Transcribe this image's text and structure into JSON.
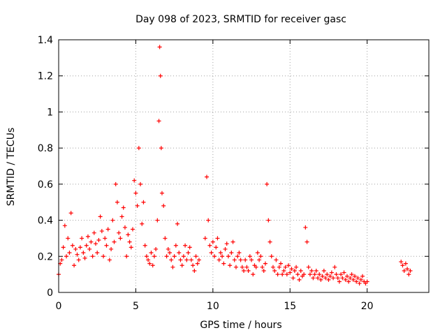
{
  "chart_data": {
    "type": "scatter",
    "title": "Day 098 of 2023, SRMTID for receiver gasc",
    "xlabel": "GPS time / hours",
    "ylabel": "SRMTID / TECUs",
    "xlim": [
      0,
      24
    ],
    "ylim": [
      0,
      1.4
    ],
    "xticks": [
      0,
      5,
      10,
      15,
      20
    ],
    "xtick_labels": [
      "0",
      "5",
      "10",
      "15",
      "20"
    ],
    "yticks": [
      0,
      0.2,
      0.4,
      0.6,
      0.8,
      1.0,
      1.2,
      1.4
    ],
    "ytick_labels": [
      "0",
      "0.2",
      "0.4",
      "0.6",
      "0.8",
      "1",
      "1.2",
      "1.4"
    ],
    "grid": true,
    "marker": "plus",
    "series": [
      {
        "name": "SRMTID",
        "color": "#ff0000",
        "x": [
          0.0,
          0.1,
          0.2,
          0.3,
          0.4,
          0.5,
          0.6,
          0.7,
          0.8,
          0.9,
          1.0,
          1.1,
          1.2,
          1.3,
          1.4,
          1.5,
          1.6,
          1.7,
          1.8,
          1.9,
          2.0,
          2.1,
          2.2,
          2.3,
          2.4,
          2.5,
          2.6,
          2.7,
          2.8,
          2.9,
          3.0,
          3.1,
          3.2,
          3.3,
          3.4,
          3.5,
          3.6,
          3.7,
          3.8,
          3.9,
          4.0,
          4.1,
          4.2,
          4.3,
          4.4,
          4.5,
          4.6,
          4.7,
          4.8,
          4.9,
          5.0,
          5.1,
          5.2,
          5.3,
          5.4,
          5.5,
          5.6,
          5.7,
          5.8,
          5.9,
          6.0,
          6.1,
          6.2,
          6.3,
          6.4,
          6.5,
          6.55,
          6.6,
          6.65,
          6.7,
          6.8,
          6.9,
          7.0,
          7.1,
          7.2,
          7.3,
          7.4,
          7.5,
          7.6,
          7.7,
          7.8,
          7.9,
          8.0,
          8.1,
          8.2,
          8.3,
          8.4,
          8.5,
          8.6,
          8.7,
          8.8,
          8.9,
          9.0,
          9.1,
          9.5,
          9.6,
          9.7,
          9.8,
          9.9,
          10.0,
          10.1,
          10.2,
          10.3,
          10.4,
          10.5,
          10.6,
          10.7,
          10.8,
          10.9,
          11.0,
          11.1,
          11.2,
          11.3,
          11.4,
          11.5,
          11.6,
          11.7,
          11.8,
          11.9,
          12.0,
          12.1,
          12.2,
          12.3,
          12.4,
          12.5,
          12.6,
          12.7,
          12.8,
          12.9,
          13.0,
          13.1,
          13.2,
          13.3,
          13.4,
          13.5,
          13.6,
          13.7,
          13.8,
          13.9,
          14.0,
          14.1,
          14.2,
          14.3,
          14.4,
          14.5,
          14.6,
          14.7,
          14.8,
          14.9,
          15.0,
          15.1,
          15.2,
          15.3,
          15.4,
          15.5,
          15.6,
          15.7,
          15.8,
          15.9,
          16.0,
          16.1,
          16.2,
          16.3,
          16.4,
          16.5,
          16.6,
          16.7,
          16.8,
          16.9,
          17.0,
          17.1,
          17.2,
          17.3,
          17.4,
          17.5,
          17.6,
          17.7,
          17.8,
          17.9,
          18.0,
          18.1,
          18.2,
          18.3,
          18.4,
          18.5,
          18.6,
          18.7,
          18.8,
          18.9,
          19.0,
          19.1,
          19.2,
          19.3,
          19.4,
          19.5,
          19.6,
          19.7,
          19.8,
          19.9,
          20.0,
          22.2,
          22.3,
          22.4,
          22.5,
          22.6,
          22.7,
          22.8
        ],
        "y": [
          0.1,
          0.16,
          0.18,
          0.25,
          0.37,
          0.2,
          0.3,
          0.22,
          0.44,
          0.26,
          0.15,
          0.24,
          0.21,
          0.18,
          0.25,
          0.3,
          0.22,
          0.19,
          0.26,
          0.31,
          0.24,
          0.28,
          0.2,
          0.33,
          0.27,
          0.22,
          0.29,
          0.42,
          0.34,
          0.2,
          0.3,
          0.26,
          0.35,
          0.18,
          0.24,
          0.4,
          0.28,
          0.6,
          0.5,
          0.33,
          0.3,
          0.42,
          0.47,
          0.36,
          0.2,
          0.32,
          0.28,
          0.25,
          0.35,
          0.62,
          0.55,
          0.48,
          0.8,
          0.6,
          0.38,
          0.5,
          0.26,
          0.2,
          0.18,
          0.16,
          0.22,
          0.15,
          0.2,
          0.24,
          0.4,
          0.95,
          1.36,
          1.2,
          0.8,
          0.55,
          0.48,
          0.3,
          0.2,
          0.24,
          0.22,
          0.18,
          0.14,
          0.2,
          0.26,
          0.38,
          0.22,
          0.18,
          0.15,
          0.2,
          0.26,
          0.18,
          0.22,
          0.25,
          0.18,
          0.15,
          0.12,
          0.2,
          0.16,
          0.18,
          0.3,
          0.64,
          0.4,
          0.26,
          0.22,
          0.28,
          0.2,
          0.25,
          0.3,
          0.18,
          0.22,
          0.2,
          0.16,
          0.24,
          0.27,
          0.2,
          0.15,
          0.22,
          0.28,
          0.18,
          0.14,
          0.2,
          0.22,
          0.18,
          0.14,
          0.12,
          0.18,
          0.14,
          0.12,
          0.2,
          0.18,
          0.1,
          0.15,
          0.14,
          0.22,
          0.18,
          0.2,
          0.14,
          0.12,
          0.16,
          0.6,
          0.4,
          0.28,
          0.2,
          0.14,
          0.12,
          0.18,
          0.1,
          0.14,
          0.16,
          0.1,
          0.12,
          0.14,
          0.1,
          0.15,
          0.11,
          0.13,
          0.08,
          0.12,
          0.14,
          0.1,
          0.07,
          0.12,
          0.09,
          0.1,
          0.36,
          0.28,
          0.14,
          0.1,
          0.12,
          0.08,
          0.1,
          0.12,
          0.08,
          0.1,
          0.07,
          0.09,
          0.12,
          0.08,
          0.1,
          0.07,
          0.09,
          0.11,
          0.08,
          0.14,
          0.1,
          0.08,
          0.06,
          0.1,
          0.08,
          0.11,
          0.07,
          0.09,
          0.06,
          0.08,
          0.1,
          0.07,
          0.09,
          0.06,
          0.08,
          0.05,
          0.07,
          0.09,
          0.06,
          0.05,
          0.06,
          0.17,
          0.15,
          0.12,
          0.16,
          0.13,
          0.1,
          0.12
        ]
      }
    ]
  }
}
